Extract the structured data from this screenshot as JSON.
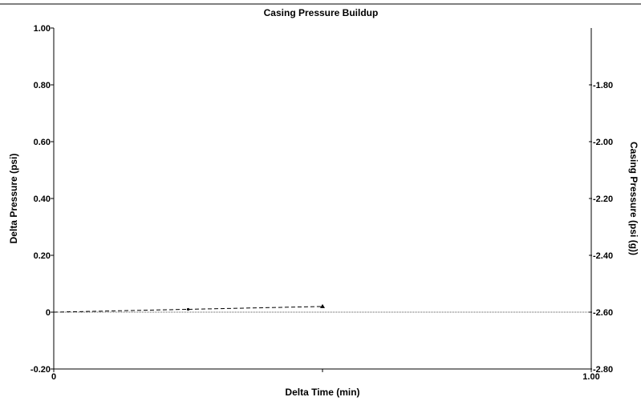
{
  "chart_data": {
    "type": "line",
    "title": "Casing Pressure Buildup",
    "xlabel": "Delta Time (min)",
    "ylabel": "Delta Pressure (psi)",
    "y2label": "Casing Pressure (psi (g))",
    "xlim": [
      0,
      1.0
    ],
    "ylim": [
      -0.2,
      1.0
    ],
    "y2lim": [
      -2.8,
      -1.6
    ],
    "x_ticks": [
      0,
      0.5,
      1.0
    ],
    "x_tick_labels": [
      "0",
      "",
      "1.00"
    ],
    "y_ticks": [
      -0.2,
      0,
      0.2,
      0.4,
      0.6,
      0.8,
      1.0
    ],
    "y_tick_labels": [
      "-0.20",
      "0",
      "0.20",
      "0.40",
      "0.60",
      "0.80",
      "1.00"
    ],
    "y2_ticks": [
      -2.8,
      -2.6,
      -2.4,
      -2.2,
      -2.0,
      -1.8
    ],
    "y2_tick_labels": [
      "-2.80",
      "-2.60",
      "-2.40",
      "-2.20",
      "-2.00",
      "-1.80"
    ],
    "reference_line_y": 0,
    "grid": false,
    "series": [
      {
        "values_x": [
          0,
          0.25,
          0.5
        ],
        "values_y": [
          0,
          0.01,
          0.02
        ],
        "markers": [
          "none",
          "dot",
          "triangle"
        ],
        "style": "dashed",
        "color": "#000000"
      }
    ],
    "colors": {
      "axis": "#000000",
      "reference": "#555555",
      "series": "#000000"
    }
  }
}
